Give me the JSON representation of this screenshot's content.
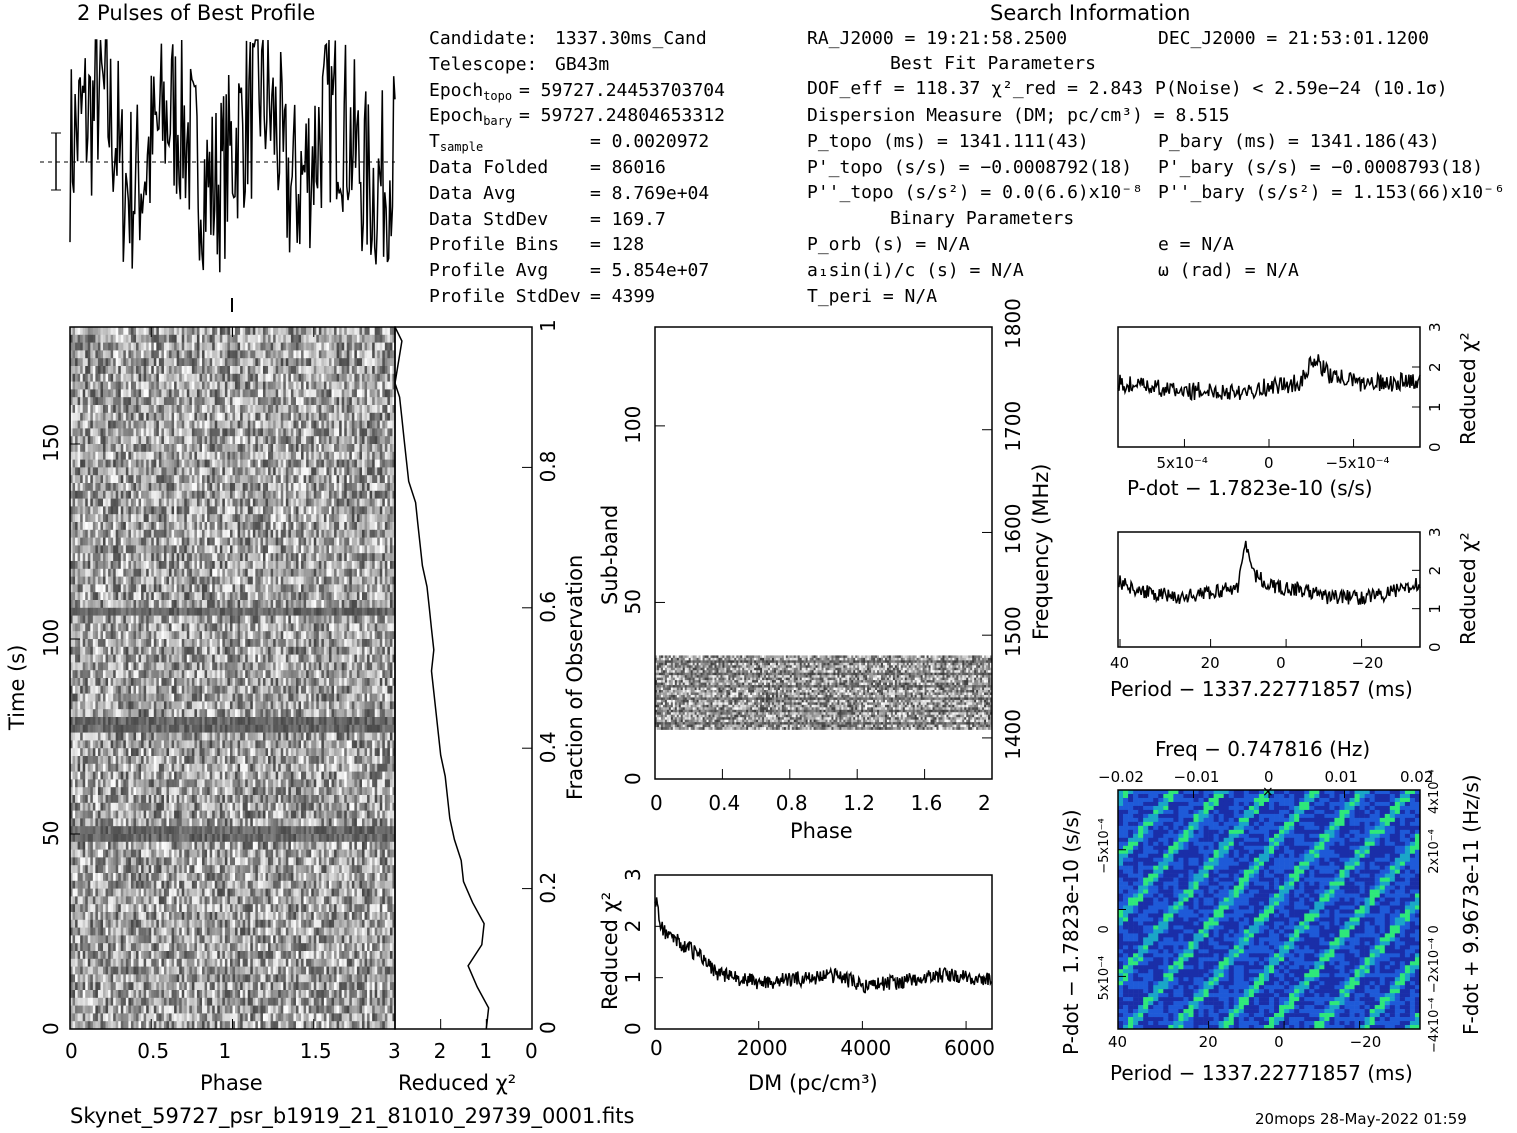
{
  "title_profile": "2 Pulses of Best Profile",
  "title_search": "Search Information",
  "footer_file": "Skynet_59727_psr_b1919_21_81010_29739_0001.fits",
  "footer_stamp": "20mops 28-May-2022 01:59",
  "info_left": [
    {
      "label": "Candidate:",
      "value": "1337.30ms_Cand"
    },
    {
      "label": "Telescope:",
      "value": "GB43m"
    },
    {
      "label": "Epoch",
      "sub": "topo",
      "value": "= 59727.24453703704"
    },
    {
      "label": "Epoch",
      "sub": "bary",
      "value": "= 59727.24804653312"
    },
    {
      "label": "T",
      "sub": "sample",
      "value": "=  0.0020972"
    },
    {
      "label": "Data Folded",
      "value": "=  86016"
    },
    {
      "label": "Data Avg",
      "value": "=  8.769e+04"
    },
    {
      "label": "Data StdDev",
      "value": "=  169.7"
    },
    {
      "label": "Profile Bins",
      "value": "=  128"
    },
    {
      "label": "Profile Avg",
      "value": "=  5.854e+07"
    },
    {
      "label": "Profile StdDev",
      "value": "=  4399"
    }
  ],
  "info_mid": {
    "ra": "RA_J2000 = 19:21:58.2500",
    "best_fit_header": "Best Fit Parameters",
    "dof": "DOF_eff = 118.37  χ²_red = 2.843",
    "dm": "Dispersion Measure (DM; pc/cm³) = 8.515",
    "p_topo": "P_topo (ms) =  1341.111(43)",
    "pd_topo": "P'_topo (s/s) = −0.0008792(18)",
    "pdd_topo": "P''_topo (s/s²) = 0.0(6.6)x10⁻⁸",
    "binary_header": "Binary Parameters",
    "p_orb": "P_orb (s) = N/A",
    "a1": "a₁sin(i)/c (s) = N/A",
    "t_peri": "T_peri = N/A"
  },
  "info_right": {
    "dec": "DEC_J2000 = 21:53:01.1200",
    "p_noise": "P(Noise) < 2.59e−24  (10.1σ)",
    "p_bary": "P_bary (ms) =  1341.186(43)",
    "pd_bary": "P'_bary (s/s) = −0.0008793(18)",
    "pdd_bary": "P''_bary (s/s²) =  1.153(66)x10⁻⁶",
    "ecc": "e = N/A",
    "omega": "ω (rad) = N/A"
  },
  "chart_data": [
    {
      "type": "line",
      "id": "profile",
      "title": "2 Pulses of Best Profile",
      "x_range": [
        0,
        2
      ],
      "note": "noisy two-pulse profile, 256 points"
    },
    {
      "type": "heatmap",
      "id": "time_phase",
      "xlabel": "Phase",
      "ylabel": "Time (s)",
      "xlim": [
        0,
        2
      ],
      "ylim": [
        0,
        180
      ],
      "x_ticks": [
        "0",
        "0.5",
        "1",
        "1.5"
      ],
      "y_ticks": [
        "0",
        "50",
        "100",
        "150"
      ],
      "dark_rows_s": [
        108,
        51,
        79
      ]
    },
    {
      "type": "line",
      "id": "chi_vs_time",
      "xlabel": "Reduced χ²",
      "ylabel": "Fraction of Observation",
      "x_ticks": [
        "3",
        "2",
        "1",
        "0"
      ],
      "y_ticks": [
        "0",
        "0.2",
        "0.4",
        "0.6",
        "0.8",
        "1"
      ],
      "x": [
        1.0,
        0.95,
        1.2,
        1.4,
        1.1,
        1.05,
        1.3,
        1.5,
        1.55,
        1.7,
        1.8,
        1.85,
        1.9,
        2.0,
        2.05,
        2.1,
        2.15,
        2.2,
        2.15,
        2.2,
        2.25,
        2.3,
        2.4,
        2.45,
        2.5,
        2.55,
        2.7,
        2.75,
        2.8,
        2.85,
        2.9,
        3.0,
        2.95,
        2.9,
        2.85,
        3.0
      ],
      "y": [
        0,
        0.03,
        0.06,
        0.09,
        0.12,
        0.15,
        0.18,
        0.21,
        0.24,
        0.27,
        0.3,
        0.33,
        0.36,
        0.39,
        0.42,
        0.45,
        0.48,
        0.51,
        0.54,
        0.57,
        0.6,
        0.63,
        0.66,
        0.69,
        0.72,
        0.75,
        0.78,
        0.81,
        0.84,
        0.87,
        0.9,
        0.92,
        0.94,
        0.96,
        0.98,
        1.0
      ]
    },
    {
      "type": "heatmap",
      "id": "subband_phase",
      "xlabel": "Phase",
      "ylabel": "Sub-band",
      "y2label": "Frequency (MHz)",
      "xlim": [
        0,
        2
      ],
      "ylim": [
        0,
        128
      ],
      "x_ticks": [
        "0",
        "0.4",
        "0.8",
        "1.2",
        "1.6",
        "2"
      ],
      "y_ticks": [
        "0",
        "50",
        "100"
      ],
      "y2_ticks": [
        "1400",
        "1500",
        "1600",
        "1700",
        "1800"
      ],
      "band_subbands": [
        14,
        35
      ]
    },
    {
      "type": "line",
      "id": "chi_vs_dm",
      "xlabel": "DM (pc/cm³)",
      "ylabel": "Reduced χ²",
      "xlim": [
        0,
        6500
      ],
      "ylim": [
        0,
        3
      ],
      "x_ticks": [
        "0",
        "2000",
        "4000",
        "6000"
      ],
      "y_ticks": [
        "0",
        "1",
        "2",
        "3"
      ],
      "x": [
        0,
        100,
        300,
        600,
        900,
        1200,
        1500,
        2000,
        2500,
        3000,
        3500,
        4000,
        4500,
        5000,
        5500,
        6000,
        6500
      ],
      "y": [
        2.6,
        2.0,
        1.8,
        1.6,
        1.4,
        1.1,
        1.0,
        0.9,
        0.95,
        1.0,
        1.05,
        0.85,
        0.9,
        0.95,
        1.05,
        1.0,
        0.95
      ]
    },
    {
      "type": "line",
      "id": "chi_vs_pdot",
      "xlabel": "P-dot − 1.7823e-10 (s/s)",
      "ylabel": "Reduced χ²",
      "ylim": [
        0,
        3
      ],
      "x_ticks": [
        "5x10⁻⁴",
        "0",
        "−5x10⁻⁴"
      ],
      "y_ticks": [
        "0",
        "1",
        "2",
        "3"
      ],
      "x": [
        0,
        0.1,
        0.2,
        0.3,
        0.4,
        0.5,
        0.6,
        0.65,
        0.7,
        0.8,
        0.9,
        1.0
      ],
      "y": [
        1.6,
        1.5,
        1.4,
        1.4,
        1.4,
        1.5,
        1.6,
        2.2,
        1.8,
        1.6,
        1.6,
        1.7
      ]
    },
    {
      "type": "line",
      "id": "chi_vs_period",
      "xlabel": "Period − 1337.22771857 (ms)",
      "ylabel": "Reduced χ²",
      "ylim": [
        0,
        3
      ],
      "x_ticks": [
        "40",
        "20",
        "0",
        "−20"
      ],
      "y_ticks": [
        "0",
        "1",
        "2",
        "3"
      ],
      "x": [
        0,
        0.1,
        0.2,
        0.3,
        0.4,
        0.42,
        0.45,
        0.5,
        0.6,
        0.7,
        0.8,
        0.9,
        1.0
      ],
      "y": [
        1.7,
        1.4,
        1.3,
        1.4,
        1.6,
        2.8,
        1.9,
        1.6,
        1.5,
        1.3,
        1.3,
        1.4,
        1.7
      ]
    },
    {
      "type": "heatmap",
      "id": "p_pdot",
      "top_label": "Freq − 0.747816 (Hz)",
      "xlabel": "Period − 1337.22771857 (ms)",
      "ylabel": "P-dot − 1.7823e-10 (s/s)",
      "y2label": "F-dot + 9.9673e-11 (Hz/s)",
      "top_ticks": [
        "−0.02",
        "−0.01",
        "0",
        "0.01",
        "0.02"
      ],
      "x_ticks": [
        "40",
        "20",
        "0",
        "−20"
      ],
      "y_ticks": [
        "−5x10⁻⁴",
        "0",
        "5x10⁻⁴"
      ],
      "y2_ticks": [
        "4x10⁻⁴",
        "2x10⁻⁴",
        "0",
        "−2x10⁻⁴",
        "−4x10⁻⁴"
      ]
    }
  ]
}
